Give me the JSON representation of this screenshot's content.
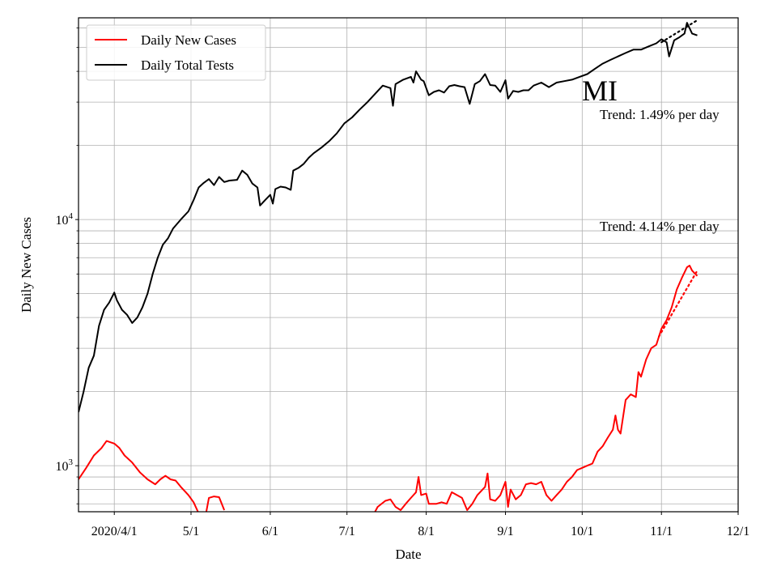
{
  "chart_data": {
    "type": "line",
    "state_label": "MI",
    "xlabel": "Date",
    "ylabel": "Daily New Cases",
    "yscale": "log",
    "grid": true,
    "legend_position": "top-left",
    "xlim": [
      "2020-03-18",
      "2020-12-01"
    ],
    "ylim": [
      650,
      66000
    ],
    "x_ticks": [
      {
        "date": "2020-04-01",
        "label": "2020/4/1"
      },
      {
        "date": "2020-05-01",
        "label": "5/1"
      },
      {
        "date": "2020-06-01",
        "label": "6/1"
      },
      {
        "date": "2020-07-01",
        "label": "7/1"
      },
      {
        "date": "2020-08-01",
        "label": "8/1"
      },
      {
        "date": "2020-09-01",
        "label": "9/1"
      },
      {
        "date": "2020-10-01",
        "label": "10/1"
      },
      {
        "date": "2020-11-01",
        "label": "11/1"
      },
      {
        "date": "2020-12-01",
        "label": "12/1"
      }
    ],
    "y_ticks": [
      {
        "value": 1000,
        "base": "10",
        "exp": "3"
      },
      {
        "value": 10000,
        "base": "10",
        "exp": "4"
      }
    ],
    "y_minor_ticks": [
      700,
      800,
      900,
      2000,
      3000,
      4000,
      5000,
      6000,
      7000,
      8000,
      9000,
      20000,
      30000,
      40000,
      50000,
      60000
    ],
    "series": [
      {
        "name": "Daily New Cases",
        "color": "#ff0000",
        "points": [
          [
            "2020-03-18",
            880
          ],
          [
            "2020-03-21",
            980
          ],
          [
            "2020-03-24",
            1100
          ],
          [
            "2020-03-27",
            1180
          ],
          [
            "2020-03-29",
            1260
          ],
          [
            "2020-04-01",
            1230
          ],
          [
            "2020-04-03",
            1180
          ],
          [
            "2020-04-05",
            1100
          ],
          [
            "2020-04-08",
            1030
          ],
          [
            "2020-04-11",
            940
          ],
          [
            "2020-04-14",
            880
          ],
          [
            "2020-04-17",
            840
          ],
          [
            "2020-04-19",
            880
          ],
          [
            "2020-04-21",
            910
          ],
          [
            "2020-04-23",
            880
          ],
          [
            "2020-04-25",
            870
          ],
          [
            "2020-04-27",
            820
          ],
          [
            "2020-04-30",
            760
          ],
          [
            "2020-05-02",
            710
          ],
          [
            "2020-05-04",
            640
          ],
          null,
          [
            "2020-05-07",
            650
          ],
          [
            "2020-05-08",
            740
          ],
          [
            "2020-05-10",
            750
          ],
          [
            "2020-05-12",
            745
          ],
          [
            "2020-05-14",
            660
          ],
          null,
          [
            "2020-07-12",
            650
          ],
          [
            "2020-07-13",
            680
          ],
          [
            "2020-07-16",
            720
          ],
          [
            "2020-07-18",
            730
          ],
          [
            "2020-07-20",
            680
          ],
          [
            "2020-07-22",
            660
          ],
          [
            "2020-07-24",
            700
          ],
          [
            "2020-07-26",
            740
          ],
          [
            "2020-07-28",
            780
          ],
          [
            "2020-07-29",
            900
          ],
          [
            "2020-07-30",
            760
          ],
          [
            "2020-08-01",
            770
          ],
          [
            "2020-08-02",
            700
          ],
          [
            "2020-08-05",
            700
          ],
          [
            "2020-08-07",
            710
          ],
          [
            "2020-08-09",
            700
          ],
          [
            "2020-08-11",
            780
          ],
          [
            "2020-08-13",
            760
          ],
          [
            "2020-08-15",
            740
          ],
          [
            "2020-08-17",
            660
          ],
          [
            "2020-08-19",
            700
          ],
          [
            "2020-08-21",
            760
          ],
          [
            "2020-08-24",
            820
          ],
          [
            "2020-08-25",
            930
          ],
          [
            "2020-08-26",
            730
          ],
          [
            "2020-08-28",
            720
          ],
          [
            "2020-08-30",
            760
          ],
          [
            "2020-09-01",
            860
          ],
          [
            "2020-09-02",
            680
          ],
          [
            "2020-09-03",
            800
          ],
          [
            "2020-09-05",
            730
          ],
          [
            "2020-09-07",
            760
          ],
          [
            "2020-09-09",
            840
          ],
          [
            "2020-09-11",
            850
          ],
          [
            "2020-09-13",
            840
          ],
          [
            "2020-09-15",
            860
          ],
          [
            "2020-09-17",
            760
          ],
          [
            "2020-09-19",
            720
          ],
          [
            "2020-09-21",
            760
          ],
          [
            "2020-09-23",
            800
          ],
          [
            "2020-09-25",
            860
          ],
          [
            "2020-09-27",
            900
          ],
          [
            "2020-09-29",
            960
          ],
          [
            "2020-10-01",
            980
          ],
          [
            "2020-10-03",
            1000
          ],
          [
            "2020-10-05",
            1020
          ],
          [
            "2020-10-07",
            1140
          ],
          [
            "2020-10-09",
            1200
          ],
          [
            "2020-10-11",
            1300
          ],
          [
            "2020-10-13",
            1400
          ],
          [
            "2020-10-14",
            1600
          ],
          [
            "2020-10-15",
            1400
          ],
          [
            "2020-10-16",
            1350
          ],
          [
            "2020-10-18",
            1850
          ],
          [
            "2020-10-20",
            1950
          ],
          [
            "2020-10-22",
            1900
          ],
          [
            "2020-10-23",
            2400
          ],
          [
            "2020-10-24",
            2300
          ],
          [
            "2020-10-26",
            2700
          ],
          [
            "2020-10-28",
            3000
          ],
          [
            "2020-10-30",
            3100
          ],
          [
            "2020-11-01",
            3600
          ],
          [
            "2020-11-03",
            3900
          ],
          [
            "2020-11-05",
            4400
          ],
          [
            "2020-11-07",
            5200
          ],
          [
            "2020-11-09",
            5800
          ],
          [
            "2020-11-11",
            6400
          ],
          [
            "2020-11-12",
            6500
          ],
          [
            "2020-11-13",
            6200
          ],
          [
            "2020-11-15",
            5900
          ]
        ]
      },
      {
        "name": "Daily Total Tests",
        "color": "#000000",
        "points": [
          [
            "2020-03-18",
            1650
          ],
          [
            "2020-03-20",
            2000
          ],
          [
            "2020-03-22",
            2500
          ],
          [
            "2020-03-24",
            2800
          ],
          [
            "2020-03-26",
            3700
          ],
          [
            "2020-03-28",
            4300
          ],
          [
            "2020-03-30",
            4600
          ],
          [
            "2020-04-01",
            5050
          ],
          [
            "2020-04-02",
            4700
          ],
          [
            "2020-04-04",
            4300
          ],
          [
            "2020-04-06",
            4100
          ],
          [
            "2020-04-08",
            3800
          ],
          [
            "2020-04-10",
            4000
          ],
          [
            "2020-04-12",
            4400
          ],
          [
            "2020-04-14",
            5000
          ],
          [
            "2020-04-16",
            6000
          ],
          [
            "2020-04-18",
            7000
          ],
          [
            "2020-04-20",
            7900
          ],
          [
            "2020-04-22",
            8400
          ],
          [
            "2020-04-24",
            9200
          ],
          [
            "2020-04-27",
            10000
          ],
          [
            "2020-04-30",
            10800
          ],
          [
            "2020-05-02",
            12000
          ],
          [
            "2020-05-04",
            13500
          ],
          [
            "2020-05-06",
            14100
          ],
          [
            "2020-05-08",
            14600
          ],
          [
            "2020-05-10",
            13800
          ],
          [
            "2020-05-12",
            14900
          ],
          [
            "2020-05-14",
            14200
          ],
          [
            "2020-05-16",
            14400
          ],
          [
            "2020-05-19",
            14500
          ],
          [
            "2020-05-21",
            15800
          ],
          [
            "2020-05-23",
            15200
          ],
          [
            "2020-05-25",
            14000
          ],
          [
            "2020-05-27",
            13500
          ],
          [
            "2020-05-28",
            11400
          ],
          [
            "2020-05-30",
            12000
          ],
          [
            "2020-06-01",
            12600
          ],
          [
            "2020-06-02",
            11600
          ],
          [
            "2020-06-03",
            13300
          ],
          [
            "2020-06-05",
            13600
          ],
          [
            "2020-06-07",
            13500
          ],
          [
            "2020-06-09",
            13200
          ],
          [
            "2020-06-10",
            15800
          ],
          [
            "2020-06-12",
            16200
          ],
          [
            "2020-06-14",
            16800
          ],
          [
            "2020-06-16",
            17800
          ],
          [
            "2020-06-18",
            18600
          ],
          [
            "2020-06-21",
            19600
          ],
          [
            "2020-06-24",
            20800
          ],
          [
            "2020-06-27",
            22400
          ],
          [
            "2020-06-30",
            24600
          ],
          [
            "2020-07-03",
            26000
          ],
          [
            "2020-07-06",
            28000
          ],
          [
            "2020-07-09",
            30000
          ],
          [
            "2020-07-12",
            32400
          ],
          [
            "2020-07-15",
            35000
          ],
          [
            "2020-07-18",
            34200
          ],
          [
            "2020-07-19",
            29000
          ],
          [
            "2020-07-20",
            35500
          ],
          [
            "2020-07-23",
            37000
          ],
          [
            "2020-07-26",
            38000
          ],
          [
            "2020-07-27",
            36000
          ],
          [
            "2020-07-28",
            40000
          ],
          [
            "2020-07-30",
            37000
          ],
          [
            "2020-07-31",
            36500
          ],
          [
            "2020-08-02",
            32000
          ],
          [
            "2020-08-04",
            33000
          ],
          [
            "2020-08-06",
            33500
          ],
          [
            "2020-08-08",
            32800
          ],
          [
            "2020-08-10",
            34800
          ],
          [
            "2020-08-12",
            35200
          ],
          [
            "2020-08-14",
            34800
          ],
          [
            "2020-08-16",
            34500
          ],
          [
            "2020-08-18",
            29500
          ],
          [
            "2020-08-20",
            35500
          ],
          [
            "2020-08-22",
            36500
          ],
          [
            "2020-08-24",
            39000
          ],
          [
            "2020-08-26",
            35200
          ],
          [
            "2020-08-28",
            35000
          ],
          [
            "2020-08-30",
            33000
          ],
          [
            "2020-09-01",
            36800
          ],
          [
            "2020-09-02",
            31000
          ],
          [
            "2020-09-04",
            33300
          ],
          [
            "2020-09-06",
            33000
          ],
          [
            "2020-09-08",
            33500
          ],
          [
            "2020-09-10",
            33500
          ],
          [
            "2020-09-12",
            35000
          ],
          [
            "2020-09-15",
            36000
          ],
          [
            "2020-09-18",
            34500
          ],
          [
            "2020-09-21",
            36000
          ],
          [
            "2020-09-24",
            36500
          ],
          [
            "2020-09-27",
            37000
          ],
          [
            "2020-09-30",
            38000
          ],
          [
            "2020-10-03",
            39000
          ],
          [
            "2020-10-06",
            41000
          ],
          [
            "2020-10-09",
            43000
          ],
          [
            "2020-10-12",
            44500
          ],
          [
            "2020-10-15",
            46000
          ],
          [
            "2020-10-18",
            47500
          ],
          [
            "2020-10-21",
            49000
          ],
          [
            "2020-10-24",
            49000
          ],
          [
            "2020-10-27",
            50500
          ],
          [
            "2020-10-30",
            52000
          ],
          [
            "2020-11-01",
            54000
          ],
          [
            "2020-11-03",
            52500
          ],
          [
            "2020-11-04",
            46000
          ],
          [
            "2020-11-06",
            53500
          ],
          [
            "2020-11-08",
            55000
          ],
          [
            "2020-11-10",
            57000
          ],
          [
            "2020-11-11",
            63000
          ],
          [
            "2020-11-13",
            57000
          ],
          [
            "2020-11-15",
            56000
          ]
        ]
      }
    ],
    "trend_lines": [
      {
        "series": "Daily Total Tests",
        "color": "#000000",
        "label": "Trend: 1.49% per day",
        "points": [
          [
            "2020-11-01",
            52500
          ],
          [
            "2020-11-15",
            64500
          ]
        ]
      },
      {
        "series": "Daily New Cases",
        "color": "#ff0000",
        "label": "Trend: 4.14% per day",
        "points": [
          [
            "2020-10-31",
            3350
          ],
          [
            "2020-11-15",
            6200
          ]
        ]
      }
    ]
  }
}
